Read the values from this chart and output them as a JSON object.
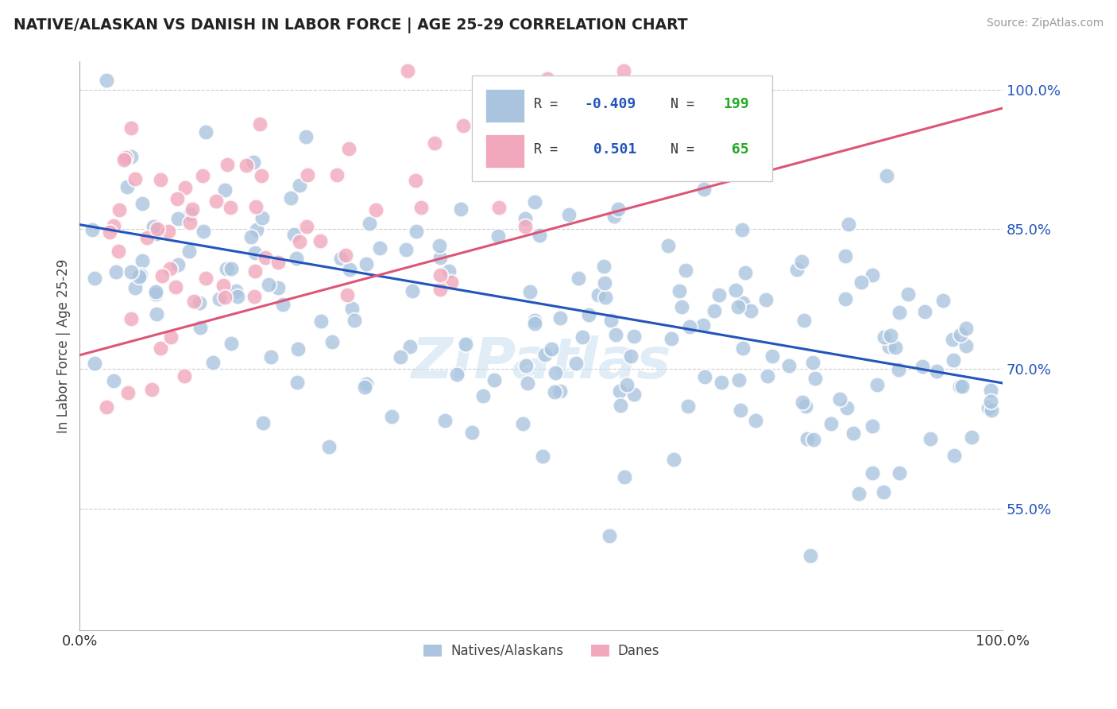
{
  "title": "NATIVE/ALASKAN VS DANISH IN LABOR FORCE | AGE 25-29 CORRELATION CHART",
  "source": "Source: ZipAtlas.com",
  "ylabel": "In Labor Force | Age 25-29",
  "xlim": [
    0.0,
    1.0
  ],
  "ylim": [
    0.42,
    1.03
  ],
  "xtick_labels": [
    "0.0%",
    "100.0%"
  ],
  "ytick_labels": [
    "55.0%",
    "70.0%",
    "85.0%",
    "100.0%"
  ],
  "ytick_values": [
    0.55,
    0.7,
    0.85,
    1.0
  ],
  "blue_R": "-0.409",
  "blue_N": "199",
  "pink_R": "0.501",
  "pink_N": "65",
  "blue_color": "#aac4df",
  "pink_color": "#f2a8bc",
  "blue_line_color": "#2255bb",
  "pink_line_color": "#dd5577",
  "legend_R_color": "#2255bb",
  "legend_N_color": "#22aa22",
  "background_color": "#ffffff",
  "grid_color": "#cccccc",
  "blue_line_x0": 0.0,
  "blue_line_y0": 0.855,
  "blue_line_x1": 1.0,
  "blue_line_y1": 0.685,
  "pink_line_x0": 0.0,
  "pink_line_y0": 0.715,
  "pink_line_x1": 1.0,
  "pink_line_y1": 0.98,
  "watermark_text": "ZIPatlas",
  "watermark_color": "#c8dff0",
  "legend_label1": "Natives/Alaskans",
  "legend_label2": "Danes"
}
